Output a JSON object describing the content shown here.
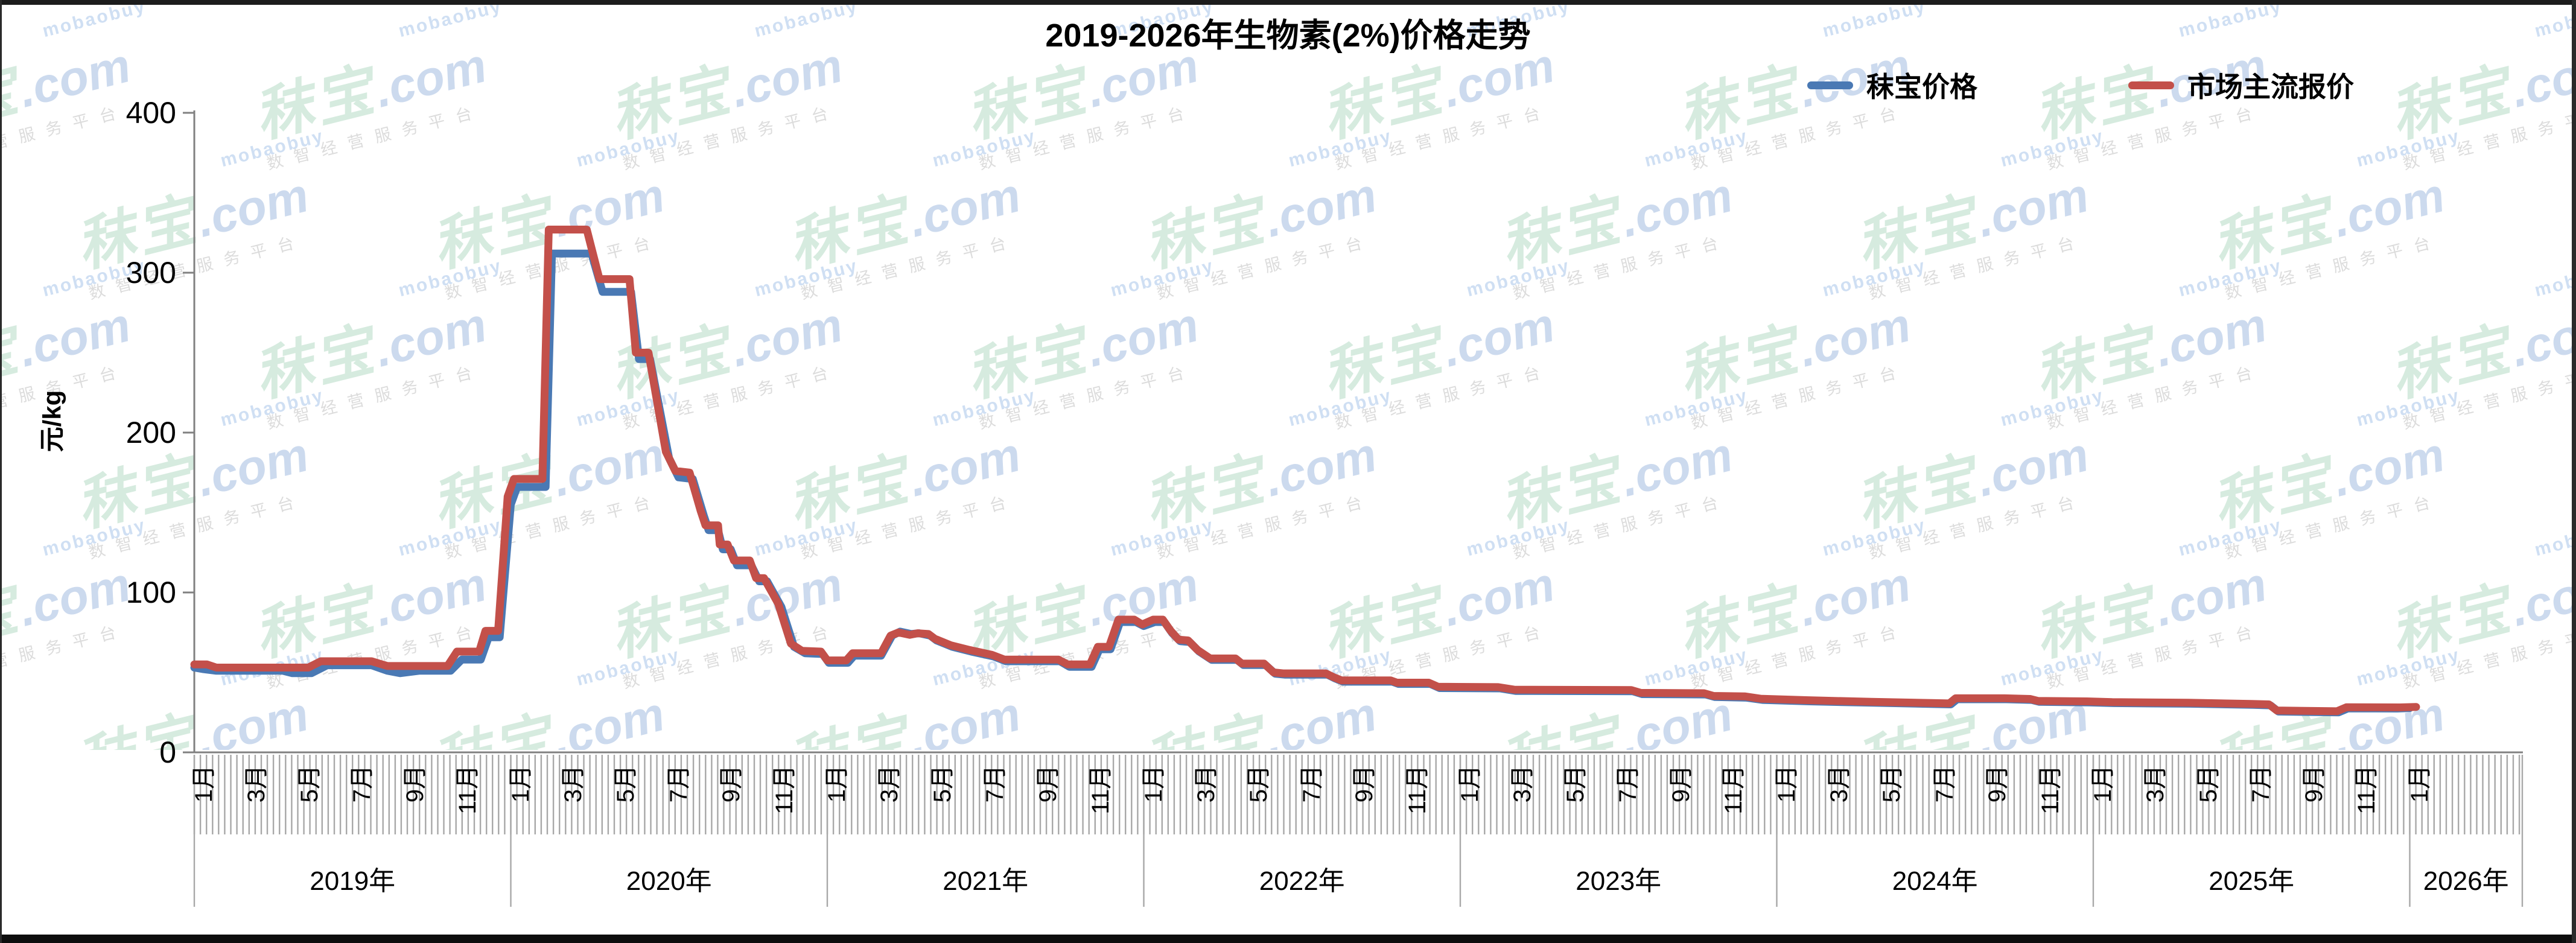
{
  "chart_data": {
    "type": "line",
    "title": "2019-2026年生物素(2%)价格走势",
    "ylabel": "元/kg",
    "ylim": [
      0,
      400
    ],
    "yticks": [
      0,
      100,
      200,
      300,
      400
    ],
    "grid": false,
    "legend_position": "top-right",
    "x_axis": {
      "unit": "weekly price categories, x encoded as decimal year",
      "month_labels": [
        "1月",
        "3月",
        "5月",
        "7月",
        "9月",
        "11月"
      ],
      "year_labels": [
        "2019年",
        "2020年",
        "2021年",
        "2022年",
        "2023年",
        "2024年",
        "2025年",
        "2026年"
      ],
      "range_years": [
        2019.0,
        2026.35
      ]
    },
    "series": [
      {
        "name": "秣宝价格",
        "color": "#4a79b4",
        "points": [
          [
            2019.0,
            53
          ],
          [
            2019.03,
            52
          ],
          [
            2019.07,
            51
          ],
          [
            2019.28,
            51
          ],
          [
            2019.31,
            49.5
          ],
          [
            2019.37,
            49.5
          ],
          [
            2019.42,
            54.5
          ],
          [
            2019.56,
            54.5
          ],
          [
            2019.61,
            51
          ],
          [
            2019.65,
            49.5
          ],
          [
            2019.71,
            51
          ],
          [
            2019.81,
            51
          ],
          [
            2019.845,
            58
          ],
          [
            2019.905,
            58
          ],
          [
            2019.93,
            72
          ],
          [
            2019.965,
            72
          ],
          [
            2020.0,
            155
          ],
          [
            2020.02,
            166
          ],
          [
            2020.11,
            166
          ],
          [
            2020.13,
            312
          ],
          [
            2020.255,
            312
          ],
          [
            2020.29,
            288
          ],
          [
            2020.38,
            288
          ],
          [
            2020.405,
            246
          ],
          [
            2020.44,
            246
          ],
          [
            2020.5,
            184
          ],
          [
            2020.53,
            172
          ],
          [
            2020.575,
            171
          ],
          [
            2020.61,
            148
          ],
          [
            2020.625,
            139
          ],
          [
            2020.655,
            139
          ],
          [
            2020.67,
            127
          ],
          [
            2020.695,
            127
          ],
          [
            2020.715,
            117
          ],
          [
            2020.76,
            117
          ],
          [
            2020.785,
            107
          ],
          [
            2020.81,
            107
          ],
          [
            2020.855,
            91
          ],
          [
            2020.895,
            66
          ],
          [
            2020.93,
            62
          ],
          [
            2020.985,
            61.5
          ],
          [
            2021.005,
            56
          ],
          [
            2021.065,
            56
          ],
          [
            2021.085,
            60.5
          ],
          [
            2021.17,
            60.5
          ],
          [
            2021.205,
            73
          ],
          [
            2021.23,
            75.5
          ],
          [
            2021.265,
            74
          ],
          [
            2021.29,
            74.5
          ],
          [
            2021.325,
            73
          ],
          [
            2021.345,
            70
          ],
          [
            2021.395,
            66
          ],
          [
            2021.455,
            63
          ],
          [
            2021.525,
            60
          ],
          [
            2021.565,
            57
          ],
          [
            2021.735,
            57
          ],
          [
            2021.765,
            53.5
          ],
          [
            2021.835,
            53.5
          ],
          [
            2021.86,
            64.5
          ],
          [
            2021.895,
            64.5
          ],
          [
            2021.925,
            81.5
          ],
          [
            2021.975,
            81.5
          ],
          [
            2022.0,
            79
          ],
          [
            2022.035,
            81.5
          ],
          [
            2022.065,
            81.5
          ],
          [
            2022.09,
            74.5
          ],
          [
            2022.115,
            69.5
          ],
          [
            2022.145,
            69
          ],
          [
            2022.175,
            63
          ],
          [
            2022.215,
            57.8
          ],
          [
            2022.295,
            57.8
          ],
          [
            2022.315,
            54.6
          ],
          [
            2022.385,
            54.6
          ],
          [
            2022.415,
            49.2
          ],
          [
            2022.445,
            48.6
          ],
          [
            2022.58,
            48.6
          ],
          [
            2022.605,
            46.2
          ],
          [
            2022.63,
            44.2
          ],
          [
            2022.785,
            44.2
          ],
          [
            2022.805,
            42.8
          ],
          [
            2022.905,
            42.8
          ],
          [
            2022.935,
            40.2
          ],
          [
            2023.125,
            40
          ],
          [
            2023.175,
            38.4
          ],
          [
            2023.545,
            38.2
          ],
          [
            2023.575,
            36.4
          ],
          [
            2023.775,
            36.2
          ],
          [
            2023.805,
            34.6
          ],
          [
            2023.905,
            34.2
          ],
          [
            2023.955,
            32.8
          ],
          [
            2024.105,
            31.9
          ],
          [
            2024.305,
            31
          ],
          [
            2024.505,
            30.2
          ],
          [
            2024.55,
            30
          ],
          [
            2024.57,
            33.2
          ],
          [
            2024.725,
            33.2
          ],
          [
            2024.805,
            32.8
          ],
          [
            2024.83,
            31.6
          ],
          [
            2024.985,
            31.2
          ],
          [
            2025.065,
            30.8
          ],
          [
            2025.305,
            30.4
          ],
          [
            2025.505,
            29.7
          ],
          [
            2025.56,
            29.4
          ],
          [
            2025.585,
            25.5
          ],
          [
            2025.775,
            25
          ],
          [
            2025.805,
            27.5
          ],
          [
            2025.96,
            27.4
          ],
          [
            2026.0,
            27.7
          ]
        ]
      },
      {
        "name": "市场主流报价",
        "color": "#c3504a",
        "points": [
          [
            2019.0,
            55
          ],
          [
            2019.04,
            55
          ],
          [
            2019.07,
            53
          ],
          [
            2019.36,
            53
          ],
          [
            2019.4,
            57
          ],
          [
            2019.56,
            57
          ],
          [
            2019.61,
            54
          ],
          [
            2019.8,
            54
          ],
          [
            2019.83,
            63
          ],
          [
            2019.9,
            63
          ],
          [
            2019.92,
            76
          ],
          [
            2019.96,
            76
          ],
          [
            2019.99,
            160
          ],
          [
            2020.01,
            171
          ],
          [
            2020.1,
            171
          ],
          [
            2020.12,
            327
          ],
          [
            2020.24,
            327
          ],
          [
            2020.28,
            296
          ],
          [
            2020.375,
            296
          ],
          [
            2020.395,
            250
          ],
          [
            2020.435,
            250
          ],
          [
            2020.49,
            188
          ],
          [
            2020.52,
            176
          ],
          [
            2020.565,
            175
          ],
          [
            2020.6,
            151
          ],
          [
            2020.615,
            142
          ],
          [
            2020.655,
            142
          ],
          [
            2020.66,
            130
          ],
          [
            2020.685,
            130
          ],
          [
            2020.705,
            120
          ],
          [
            2020.755,
            120
          ],
          [
            2020.775,
            109
          ],
          [
            2020.8,
            109
          ],
          [
            2020.845,
            93
          ],
          [
            2020.885,
            68
          ],
          [
            2020.92,
            63.5
          ],
          [
            2020.98,
            63
          ],
          [
            2021.0,
            57.5
          ],
          [
            2021.06,
            57.5
          ],
          [
            2021.08,
            62
          ],
          [
            2021.17,
            62
          ],
          [
            2021.2,
            73
          ],
          [
            2021.225,
            75
          ],
          [
            2021.26,
            73.5
          ],
          [
            2021.285,
            74.5
          ],
          [
            2021.32,
            74
          ],
          [
            2021.34,
            71
          ],
          [
            2021.39,
            67
          ],
          [
            2021.45,
            64
          ],
          [
            2021.52,
            61
          ],
          [
            2021.56,
            58
          ],
          [
            2021.73,
            58
          ],
          [
            2021.76,
            55
          ],
          [
            2021.83,
            55
          ],
          [
            2021.855,
            66
          ],
          [
            2021.89,
            66
          ],
          [
            2021.92,
            83
          ],
          [
            2021.97,
            83
          ],
          [
            2021.995,
            80
          ],
          [
            2022.03,
            83
          ],
          [
            2022.06,
            83
          ],
          [
            2022.085,
            76
          ],
          [
            2022.11,
            70.5
          ],
          [
            2022.14,
            70
          ],
          [
            2022.17,
            64
          ],
          [
            2022.21,
            58.7
          ],
          [
            2022.29,
            58.7
          ],
          [
            2022.31,
            55.5
          ],
          [
            2022.38,
            55.5
          ],
          [
            2022.41,
            50
          ],
          [
            2022.44,
            49.4
          ],
          [
            2022.575,
            49.4
          ],
          [
            2022.6,
            47
          ],
          [
            2022.625,
            45
          ],
          [
            2022.78,
            45
          ],
          [
            2022.8,
            43.6
          ],
          [
            2022.9,
            43.6
          ],
          [
            2022.93,
            41
          ],
          [
            2023.12,
            40.8
          ],
          [
            2023.17,
            39.2
          ],
          [
            2023.54,
            39
          ],
          [
            2023.57,
            37.2
          ],
          [
            2023.77,
            37
          ],
          [
            2023.8,
            35.3
          ],
          [
            2023.9,
            35
          ],
          [
            2023.95,
            33.5
          ],
          [
            2024.1,
            32.6
          ],
          [
            2024.3,
            31.6
          ],
          [
            2024.5,
            30.8
          ],
          [
            2024.545,
            30.6
          ],
          [
            2024.565,
            33.8
          ],
          [
            2024.72,
            33.8
          ],
          [
            2024.8,
            33.4
          ],
          [
            2024.825,
            32.2
          ],
          [
            2024.98,
            31.9
          ],
          [
            2025.06,
            31.4
          ],
          [
            2025.3,
            31
          ],
          [
            2025.5,
            30.3
          ],
          [
            2025.555,
            30
          ],
          [
            2025.58,
            26.2
          ],
          [
            2025.77,
            25.7
          ],
          [
            2025.8,
            28.2
          ],
          [
            2025.97,
            28.1
          ],
          [
            2026.02,
            28.4
          ]
        ]
      }
    ]
  },
  "watermark": {
    "brand": "秣宝",
    "domain": ".com",
    "latin": "mobaobuy",
    "slogan": "数智经营服务平台"
  }
}
